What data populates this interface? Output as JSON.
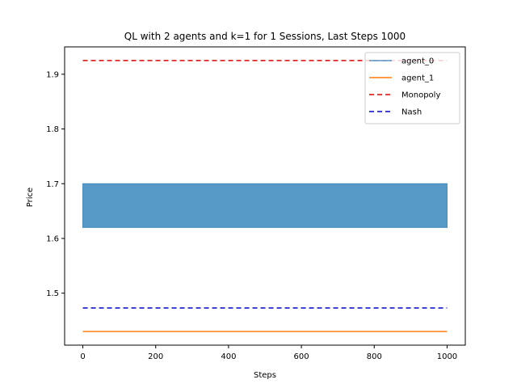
{
  "chart_data": {
    "type": "line",
    "title": "QL with 2 agents and k=1 for 1 Sessions, Last Steps 1000",
    "xlabel": "Steps",
    "ylabel": "Price",
    "xlim": [
      -50,
      1050
    ],
    "ylim": [
      1.405,
      1.95
    ],
    "x_ticks": [
      "0",
      "200",
      "400",
      "600",
      "800",
      "1000"
    ],
    "x_tick_values": [
      0,
      200,
      400,
      600,
      800,
      1000
    ],
    "y_ticks": [
      "1.5",
      "1.6",
      "1.7",
      "1.8",
      "1.9"
    ],
    "y_tick_values": [
      1.5,
      1.6,
      1.7,
      1.8,
      1.9
    ],
    "grid": false,
    "legend_position": "top-right",
    "series": [
      {
        "name": "agent_0",
        "style": "solid",
        "color": "#1f77b4",
        "note_oscillating_band": true,
        "x_range": [
          0,
          1000
        ],
        "low": 1.62,
        "high": 1.7
      },
      {
        "name": "agent_1",
        "style": "solid",
        "color": "#ff7f0e",
        "x": [
          0,
          1000
        ],
        "y": [
          1.43,
          1.43
        ]
      },
      {
        "name": "Monopoly",
        "style": "dashed",
        "color": "#e00000",
        "x": [
          0,
          1000
        ],
        "y": [
          1.925,
          1.925
        ]
      },
      {
        "name": "Nash",
        "style": "dashed",
        "color": "#0000d0",
        "x": [
          0,
          1000
        ],
        "y": [
          1.473,
          1.473
        ]
      }
    ]
  }
}
